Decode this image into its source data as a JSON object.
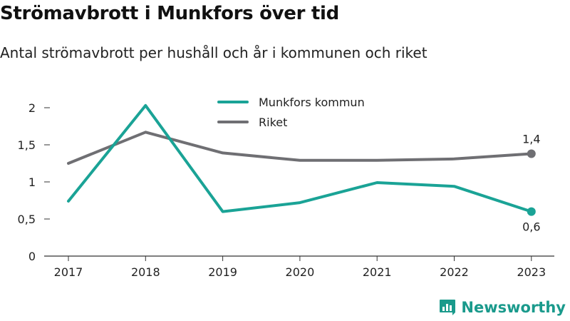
{
  "header": {
    "title": "Strömavbrott i Munkfors över tid",
    "subtitle": "Antal strömavbrott per hushåll och år i kommunen och riket"
  },
  "brand": {
    "name": "Newsworthy"
  },
  "colors": {
    "munkfors": "#1aa396",
    "riket": "#6f6f73",
    "axis": "#333333",
    "grid": "#cccccc"
  },
  "chart_data": {
    "type": "line",
    "categories": [
      "2017",
      "2018",
      "2019",
      "2020",
      "2021",
      "2022",
      "2023"
    ],
    "series": [
      {
        "name": "Munkfors kommun",
        "values": [
          0.74,
          2.03,
          0.6,
          0.72,
          0.99,
          0.94,
          0.6
        ],
        "end_label": "0,6"
      },
      {
        "name": "Riket",
        "values": [
          1.25,
          1.67,
          1.39,
          1.29,
          1.29,
          1.31,
          1.38
        ],
        "end_label": "1,4"
      }
    ],
    "ylim": [
      0,
      2.2
    ],
    "yticks": [
      0,
      0.5,
      1,
      1.5,
      2
    ],
    "ytick_labels": [
      "0",
      "0,5",
      "1",
      "1,5",
      "2"
    ],
    "legend_position": "top-center",
    "grid": false
  }
}
